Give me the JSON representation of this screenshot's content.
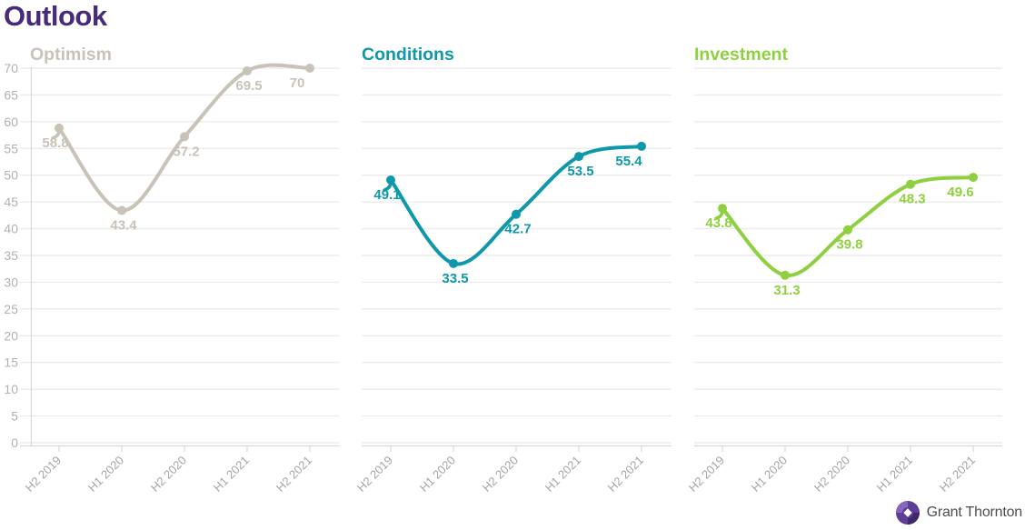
{
  "page_title": "Outlook",
  "colors": {
    "title_purple": "#472a7c",
    "grid": "#ececec",
    "axis_line": "#d9d9d9",
    "y_tick_label": "#b3b1ae",
    "x_tick_label": "#a7a5a3",
    "logo_text": "#4d4e50",
    "logo_purple_dark": "#3d2a68",
    "logo_purple_mid": "#5d3d96",
    "logo_purple_light": "#8568bb"
  },
  "y_axis": {
    "ticks": [
      0,
      5,
      10,
      15,
      20,
      25,
      30,
      35,
      40,
      45,
      50,
      55,
      60,
      65,
      70
    ]
  },
  "chart_data": [
    {
      "type": "line",
      "title": "Optimism",
      "color": "#c9c2b9",
      "categories": [
        "H2 2019",
        "H1 2020",
        "H2 2020",
        "H1 2021",
        "H2 2021"
      ],
      "values": [
        58.8,
        43.4,
        57.2,
        69.5,
        70
      ],
      "ylim": [
        0,
        70
      ],
      "grid": true,
      "show_y_tick_labels": true,
      "legend_position": "none"
    },
    {
      "type": "line",
      "title": "Conditions",
      "color": "#0f98a9",
      "categories": [
        "H2 2019",
        "H1 2020",
        "H2 2020",
        "H1 2021",
        "H2 2021"
      ],
      "values": [
        49.1,
        33.5,
        42.7,
        53.5,
        55.4
      ],
      "ylim": [
        0,
        70
      ],
      "grid": true,
      "show_y_tick_labels": false,
      "legend_position": "none"
    },
    {
      "type": "line",
      "title": "Investment",
      "color": "#8ed03f",
      "categories": [
        "H2 2019",
        "H1 2020",
        "H2 2020",
        "H1 2021",
        "H2 2021"
      ],
      "values": [
        43.8,
        31.3,
        39.8,
        48.3,
        49.6
      ],
      "ylim": [
        0,
        70
      ],
      "grid": true,
      "show_y_tick_labels": false,
      "legend_position": "none"
    }
  ],
  "logo": {
    "text": "Grant Thornton"
  }
}
